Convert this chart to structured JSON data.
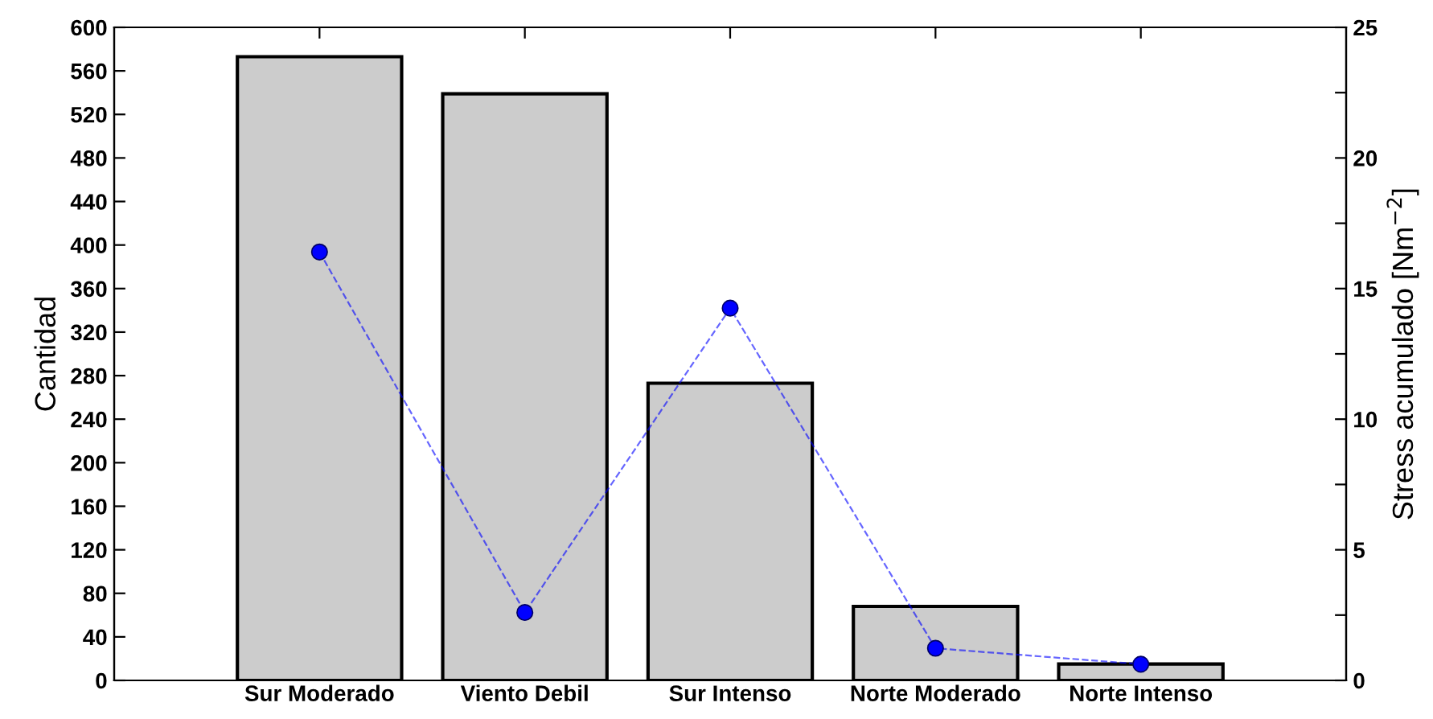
{
  "chart_data": {
    "type": "bar",
    "categories": [
      "Sur Moderado",
      "Viento Debil",
      "Sur Intenso",
      "Norte Moderado",
      "Norte Intenso"
    ],
    "ylabel": "Cantidad",
    "y2label": "Stress acumulado [Nm$^{−2}$]",
    "series": [
      {
        "color": "#cccccc",
        "values": [
          573,
          539,
          273,
          68,
          15
        ]
      },
      {
        "type": "line",
        "axis": "y2",
        "color": "#0000ff",
        "marker": "circle",
        "line_style": "dashed",
        "values": [
          16.4,
          2.6,
          14.25,
          1.23,
          0.62
        ]
      }
    ],
    "ylim": [
      0,
      600
    ],
    "yticks": [
      0,
      40,
      80,
      120,
      160,
      200,
      240,
      280,
      320,
      360,
      400,
      440,
      480,
      520,
      560,
      600
    ],
    "y2lim": [
      0,
      25
    ],
    "y2ticks": [
      0,
      {
        "value": 2.5,
        "label": null
      },
      5,
      {
        "value": 7.5,
        "label": null
      },
      10,
      {
        "value": 12.5,
        "label": null
      },
      15,
      {
        "value": 17.5,
        "label": null
      },
      20,
      {
        "value": 22.5,
        "label": null
      },
      25
    ],
    "grid": false,
    "legend": false
  }
}
